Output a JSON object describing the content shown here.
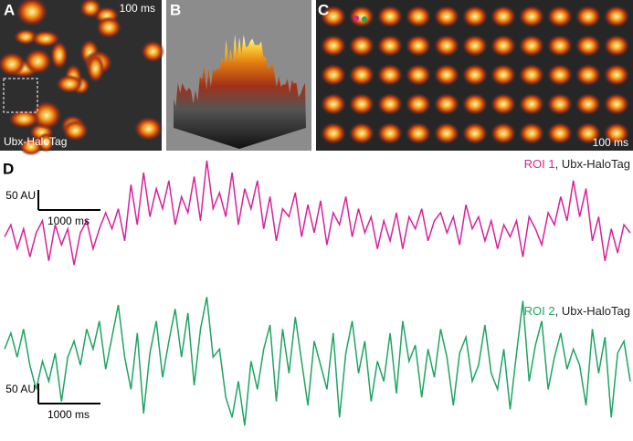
{
  "panels": [
    {
      "label": "A",
      "time": "100 ms",
      "caption": "Ubx-HaloTag"
    },
    {
      "label": "B"
    },
    {
      "label": "C",
      "time": "100 ms"
    }
  ],
  "chart_data": {
    "type": "line",
    "label": "D",
    "scalebar": {
      "y": {
        "value": 50,
        "label": "50 AU"
      },
      "x": {
        "value": 1000,
        "label": "1000 ms"
      }
    },
    "series": [
      {
        "name": "ROI 1",
        "label_suffix": ", Ubx-HaloTag",
        "color": "#d6239a",
        "values": [
          -10,
          20,
          -40,
          10,
          -60,
          0,
          30,
          -70,
          20,
          -30,
          10,
          -80,
          0,
          30,
          -40,
          10,
          50,
          10,
          60,
          -20,
          120,
          20,
          150,
          40,
          110,
          60,
          130,
          20,
          90,
          50,
          140,
          30,
          180,
          60,
          100,
          40,
          150,
          20,
          110,
          60,
          130,
          10,
          90,
          -20,
          60,
          40,
          100,
          -10,
          70,
          0,
          80,
          -30,
          50,
          20,
          90,
          -10,
          60,
          0,
          40,
          -40,
          30,
          -20,
          50,
          -40,
          40,
          10,
          60,
          -20,
          30,
          50,
          0,
          40,
          -30,
          70,
          10,
          40,
          -20,
          30,
          -40,
          20,
          -10,
          30,
          -60,
          40,
          10,
          -30,
          50,
          20,
          90,
          30,
          130,
          40,
          110,
          -20,
          40,
          -70,
          10,
          -50,
          20,
          0
        ]
      },
      {
        "name": "ROI 2",
        "label_suffix": ", Ubx-HaloTag",
        "color": "#1fa463",
        "values": [
          40,
          80,
          20,
          90,
          0,
          -60,
          10,
          -40,
          30,
          -90,
          20,
          60,
          0,
          90,
          40,
          110,
          -10,
          70,
          150,
          20,
          -60,
          80,
          -120,
          30,
          110,
          -30,
          60,
          140,
          20,
          130,
          -50,
          90,
          170,
          20,
          40,
          -80,
          -130,
          -40,
          -150,
          10,
          -60,
          40,
          100,
          -90,
          90,
          -20,
          120,
          10,
          -100,
          60,
          0,
          -60,
          80,
          -130,
          30,
          110,
          -20,
          60,
          -90,
          10,
          -40,
          80,
          -70,
          110,
          10,
          50,
          -80,
          40,
          -30,
          90,
          20,
          -100,
          30,
          70,
          -40,
          0,
          100,
          -20,
          -60,
          40,
          -110,
          30,
          160,
          -40,
          50,
          110,
          -60,
          20,
          80,
          -10,
          40,
          0,
          -100,
          90,
          -20,
          70,
          -130,
          30,
          60,
          -40
        ]
      }
    ]
  }
}
